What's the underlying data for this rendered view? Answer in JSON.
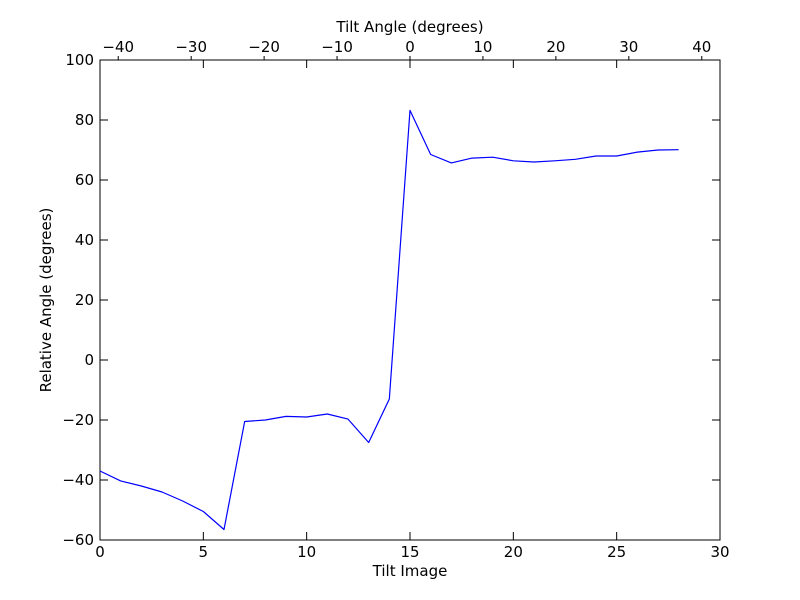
{
  "chart_data": {
    "type": "line",
    "xlabel": "Tilt Image",
    "ylabel": "Relative Angle (degrees)",
    "x2label": "Tilt Angle (degrees)",
    "xlim": [
      0,
      30
    ],
    "ylim": [
      -60,
      100
    ],
    "x2lim": [
      -42.5,
      42.5
    ],
    "x_ticks": [
      "0",
      "5",
      "10",
      "15",
      "20",
      "25",
      "30"
    ],
    "y_ticks": [
      "−60",
      "−40",
      "−20",
      "0",
      "20",
      "40",
      "60",
      "80",
      "100"
    ],
    "x2_ticks": [
      "−40",
      "−30",
      "−20",
      "−10",
      "0",
      "10",
      "20",
      "30",
      "40"
    ],
    "grid": false,
    "series": [
      {
        "color": "#0000ff",
        "x": [
          0,
          1,
          2,
          3,
          4,
          5,
          6,
          7,
          8,
          9,
          10,
          11,
          12,
          13,
          14,
          15,
          16,
          17,
          18,
          19,
          20,
          21,
          22,
          23,
          24,
          25,
          26,
          27,
          28
        ],
        "values": [
          -37,
          -40.3,
          -42,
          -44,
          -47,
          -50.5,
          -56.5,
          -20.5,
          -20,
          -18.8,
          -19,
          -18,
          -19.7,
          -27.5,
          -13,
          83.2,
          68.5,
          65.7,
          67.3,
          67.6,
          66.4,
          66,
          66.4,
          66.9,
          68,
          68,
          69.3,
          70,
          70.1
        ]
      }
    ]
  }
}
